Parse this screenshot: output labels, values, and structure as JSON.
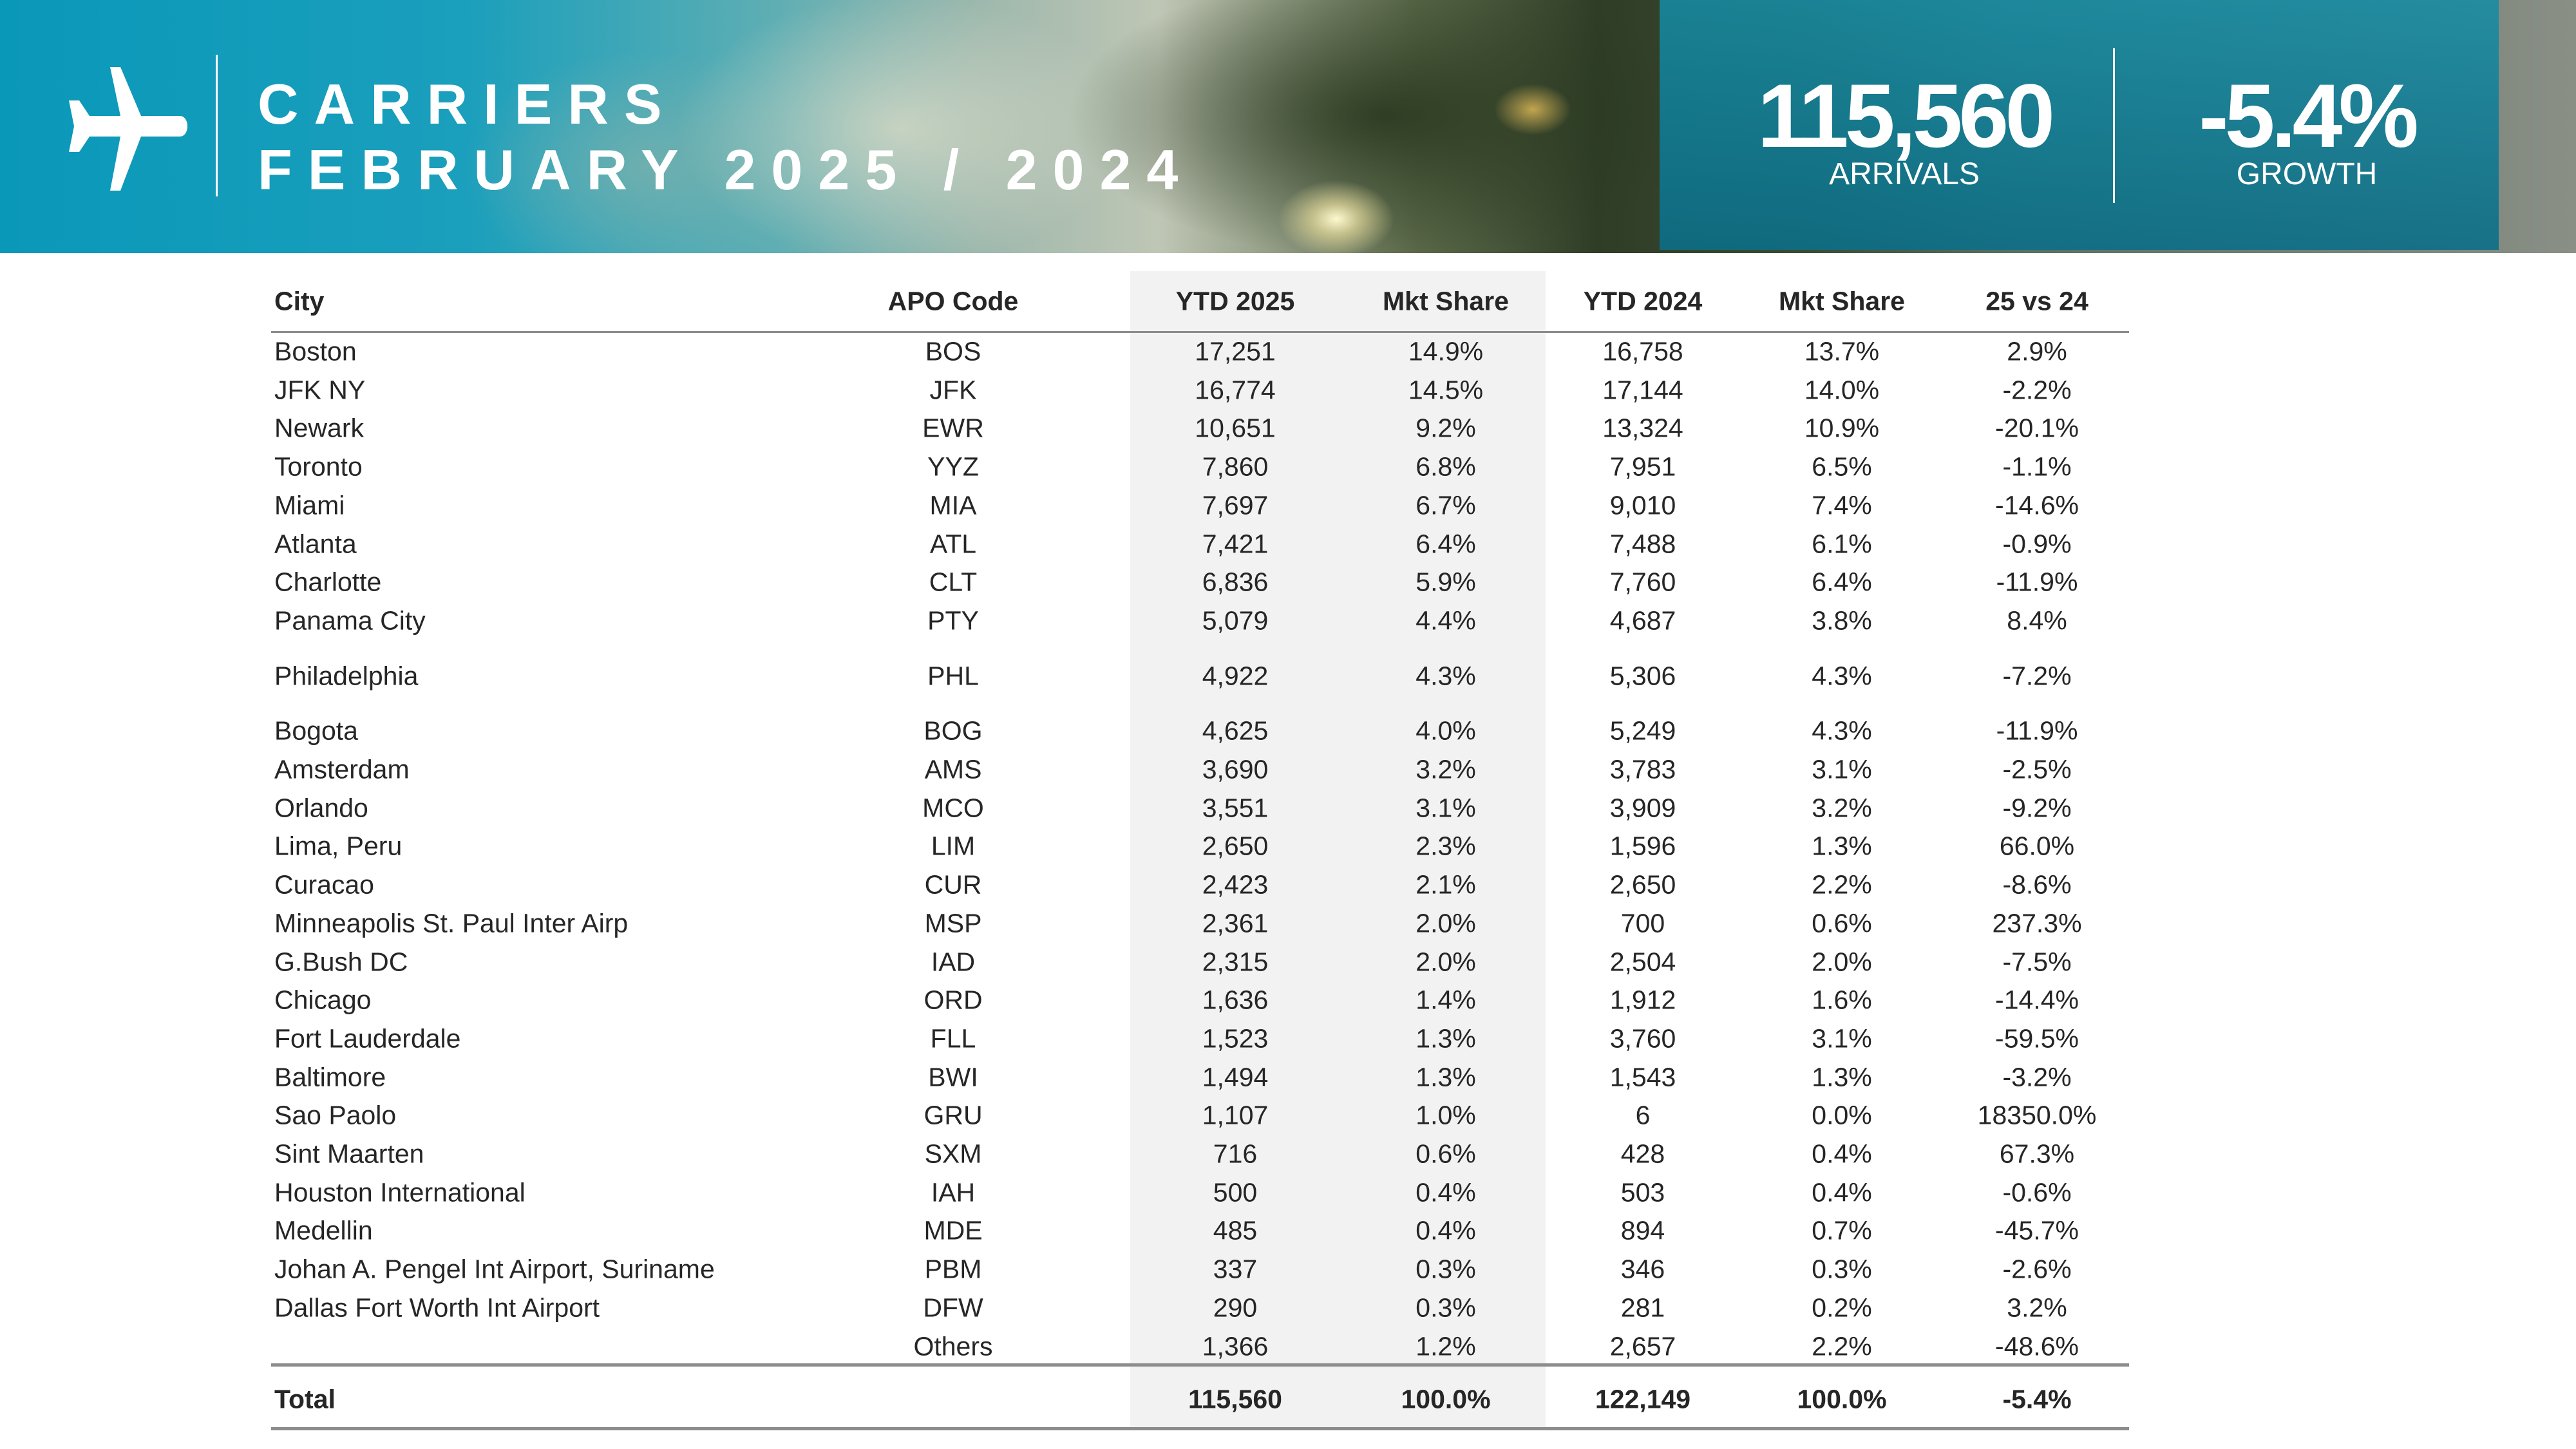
{
  "header": {
    "title_line1": "CARRIERS",
    "title_line2": "FEBRUARY 2025 / 2024",
    "arrivals_value": "115,560",
    "arrivals_label": "ARRIVALS",
    "growth_value": "-5.4%",
    "growth_label": "GROWTH",
    "icon": "airplane-icon"
  },
  "table": {
    "columns": [
      "City",
      "APO Code",
      "YTD 2025",
      "Mkt Share",
      "YTD 2024",
      "Mkt Share",
      "25 vs 24"
    ],
    "rows": [
      [
        "Boston",
        "BOS",
        "17,251",
        "14.9%",
        "16,758",
        "13.7%",
        "2.9%"
      ],
      [
        "JFK NY",
        "JFK",
        "16,774",
        "14.5%",
        "17,144",
        "14.0%",
        "-2.2%"
      ],
      [
        "Newark",
        "EWR",
        "10,651",
        "9.2%",
        "13,324",
        "10.9%",
        "-20.1%"
      ],
      [
        "Toronto",
        "YYZ",
        "7,860",
        "6.8%",
        "7,951",
        "6.5%",
        "-1.1%"
      ],
      [
        "Miami",
        "MIA",
        "7,697",
        "6.7%",
        "9,010",
        "7.4%",
        "-14.6%"
      ],
      [
        "Atlanta",
        "ATL",
        "7,421",
        "6.4%",
        "7,488",
        "6.1%",
        "-0.9%"
      ],
      [
        "Charlotte",
        "CLT",
        "6,836",
        "5.9%",
        "7,760",
        "6.4%",
        "-11.9%"
      ],
      [
        "Panama City",
        "PTY",
        "5,079",
        "4.4%",
        "4,687",
        "3.8%",
        "8.4%"
      ],
      [
        "Philadelphia",
        "PHL",
        "4,922",
        "4.3%",
        "5,306",
        "4.3%",
        "-7.2%"
      ],
      [
        "Bogota",
        "BOG",
        "4,625",
        "4.0%",
        "5,249",
        "4.3%",
        "-11.9%"
      ],
      [
        "Amsterdam",
        "AMS",
        "3,690",
        "3.2%",
        "3,783",
        "3.1%",
        "-2.5%"
      ],
      [
        "Orlando",
        "MCO",
        "3,551",
        "3.1%",
        "3,909",
        "3.2%",
        "-9.2%"
      ],
      [
        "Lima, Peru",
        "LIM",
        "2,650",
        "2.3%",
        "1,596",
        "1.3%",
        "66.0%"
      ],
      [
        "Curacao",
        "CUR",
        "2,423",
        "2.1%",
        "2,650",
        "2.2%",
        "-8.6%"
      ],
      [
        "Minneapolis St. Paul Inter Airp",
        "MSP",
        "2,361",
        "2.0%",
        "700",
        "0.6%",
        "237.3%"
      ],
      [
        "G.Bush DC",
        "IAD",
        "2,315",
        "2.0%",
        "2,504",
        "2.0%",
        "-7.5%"
      ],
      [
        "Chicago",
        "ORD",
        "1,636",
        "1.4%",
        "1,912",
        "1.6%",
        "-14.4%"
      ],
      [
        "Fort Lauderdale",
        "FLL",
        "1,523",
        "1.3%",
        "3,760",
        "3.1%",
        "-59.5%"
      ],
      [
        "Baltimore",
        "BWI",
        "1,494",
        "1.3%",
        "1,543",
        "1.3%",
        "-3.2%"
      ],
      [
        "Sao Paolo",
        "GRU",
        "1,107",
        "1.0%",
        "6",
        "0.0%",
        "18350.0%"
      ],
      [
        "Sint Maarten",
        "SXM",
        "716",
        "0.6%",
        "428",
        "0.4%",
        "67.3%"
      ],
      [
        "Houston International",
        "IAH",
        "500",
        "0.4%",
        "503",
        "0.4%",
        "-0.6%"
      ],
      [
        "Medellin",
        "MDE",
        "485",
        "0.4%",
        "894",
        "0.7%",
        "-45.7%"
      ],
      [
        "Johan A. Pengel Int Airport, Suriname",
        "PBM",
        "337",
        "0.3%",
        "346",
        "0.3%",
        "-2.6%"
      ],
      [
        "Dallas Fort Worth Int Airport",
        "DFW",
        "290",
        "0.3%",
        "281",
        "0.2%",
        "3.2%"
      ],
      [
        "",
        "Others",
        "1,366",
        "1.2%",
        "2,657",
        "2.2%",
        "-48.6%"
      ]
    ],
    "total": [
      "Total",
      "",
      "115,560",
      "100.0%",
      "122,149",
      "100.0%",
      "-5.4%"
    ]
  }
}
